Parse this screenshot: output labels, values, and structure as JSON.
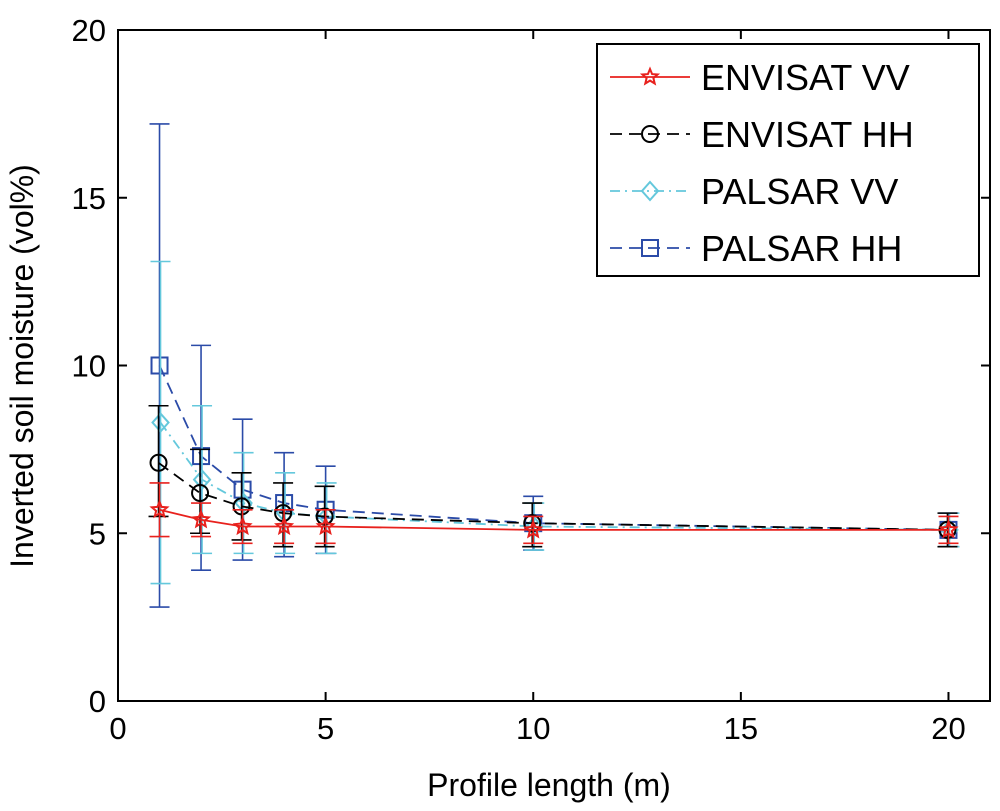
{
  "chart_data": {
    "type": "line",
    "title": "",
    "xlabel": "Profile length (m)",
    "ylabel": "Inverted soil moisture (vol%)",
    "xlim": [
      0,
      21
    ],
    "ylim": [
      0,
      20
    ],
    "xticks": [
      0,
      5,
      10,
      15,
      20
    ],
    "xtick_labels": [
      "0",
      "5",
      "10",
      "15",
      "20"
    ],
    "yticks": [
      0,
      5,
      10,
      15,
      20
    ],
    "ytick_labels": [
      "0",
      "5",
      "10",
      "15",
      "20"
    ],
    "grid": false,
    "legend_position": "top-right",
    "x": [
      1,
      2,
      3,
      4,
      5,
      10,
      20
    ],
    "series": [
      {
        "name": "ENVISAT VV",
        "color": "#e8211d",
        "marker": "star",
        "line_style": "solid",
        "values": [
          5.7,
          5.4,
          5.2,
          5.2,
          5.2,
          5.1,
          5.1
        ],
        "error_low": [
          4.9,
          4.9,
          4.7,
          4.7,
          4.7,
          4.7,
          4.7
        ],
        "error_high": [
          6.5,
          5.9,
          5.7,
          5.7,
          5.7,
          5.5,
          5.5
        ]
      },
      {
        "name": "ENVISAT HH",
        "color": "#000000",
        "marker": "circle",
        "line_style": "dashed",
        "values": [
          7.1,
          6.2,
          5.8,
          5.6,
          5.5,
          5.3,
          5.1
        ],
        "error_low": [
          5.5,
          5.0,
          4.8,
          4.6,
          4.6,
          4.6,
          4.6
        ],
        "error_high": [
          8.8,
          7.5,
          6.8,
          6.5,
          6.4,
          5.9,
          5.6
        ]
      },
      {
        "name": "PALSAR VV",
        "color": "#64c8dc",
        "marker": "diamond",
        "line_style": "dashdot",
        "values": [
          8.3,
          6.6,
          5.9,
          5.6,
          5.5,
          5.2,
          5.1
        ],
        "error_low": [
          3.5,
          4.4,
          4.4,
          4.4,
          4.4,
          4.5,
          4.6
        ],
        "error_high": [
          13.1,
          8.8,
          7.4,
          6.8,
          6.5,
          5.9,
          5.6
        ]
      },
      {
        "name": "PALSAR HH",
        "color": "#2b4ba8",
        "marker": "square",
        "line_style": "dashed",
        "values": [
          10.0,
          7.3,
          6.3,
          5.9,
          5.7,
          5.3,
          5.1
        ],
        "error_low": [
          2.8,
          3.9,
          4.2,
          4.3,
          4.4,
          4.5,
          4.6
        ],
        "error_high": [
          17.2,
          10.6,
          8.4,
          7.4,
          7.0,
          6.1,
          5.6
        ]
      }
    ]
  }
}
